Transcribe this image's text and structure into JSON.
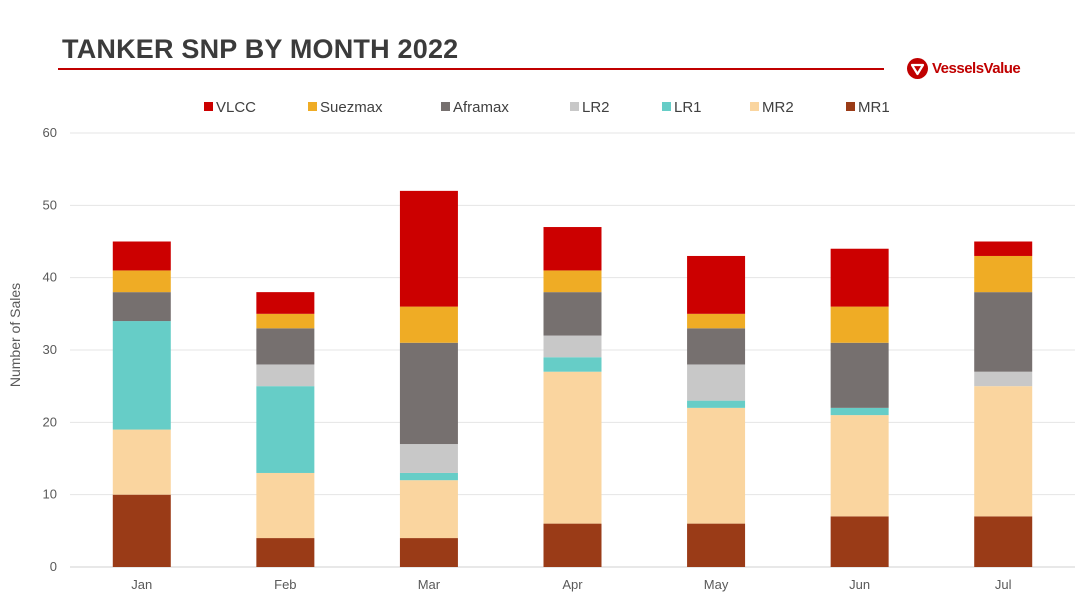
{
  "header": {
    "title": "TANKER SNP BY MONTH 2022",
    "brand": "VesselsValue",
    "brand_color": "#c00000"
  },
  "chart_data": {
    "type": "bar",
    "stacked": true,
    "title": "",
    "xlabel": "",
    "ylabel": "Number of Sales",
    "ylim": [
      0,
      60
    ],
    "yticks": [
      0,
      10,
      20,
      30,
      40,
      50,
      60
    ],
    "grid": true,
    "legend_position": "top",
    "categories": [
      "Jan",
      "Feb",
      "Mar",
      "Apr",
      "May",
      "Jun",
      "Jul"
    ],
    "series": [
      {
        "name": "MR1",
        "color": "#9a3b17",
        "values": [
          10,
          4,
          4,
          6,
          6,
          7,
          7
        ]
      },
      {
        "name": "MR2",
        "color": "#fad59f",
        "values": [
          9,
          9,
          8,
          21,
          16,
          14,
          18
        ]
      },
      {
        "name": "LR1",
        "color": "#66cdc7",
        "values": [
          15,
          12,
          1,
          2,
          1,
          1,
          0
        ]
      },
      {
        "name": "LR2",
        "color": "#c8c8c8",
        "values": [
          0,
          3,
          4,
          3,
          5,
          0,
          2
        ]
      },
      {
        "name": "Aframax",
        "color": "#76706f",
        "values": [
          4,
          5,
          14,
          6,
          5,
          9,
          11
        ]
      },
      {
        "name": "Suezmax",
        "color": "#efac25",
        "values": [
          3,
          2,
          5,
          3,
          2,
          5,
          5
        ]
      },
      {
        "name": "VLCC",
        "color": "#cc0000",
        "values": [
          4,
          3,
          16,
          6,
          8,
          8,
          2
        ]
      }
    ],
    "legend_order": [
      "VLCC",
      "Suezmax",
      "Aframax",
      "LR2",
      "LR1",
      "MR2",
      "MR1"
    ]
  }
}
